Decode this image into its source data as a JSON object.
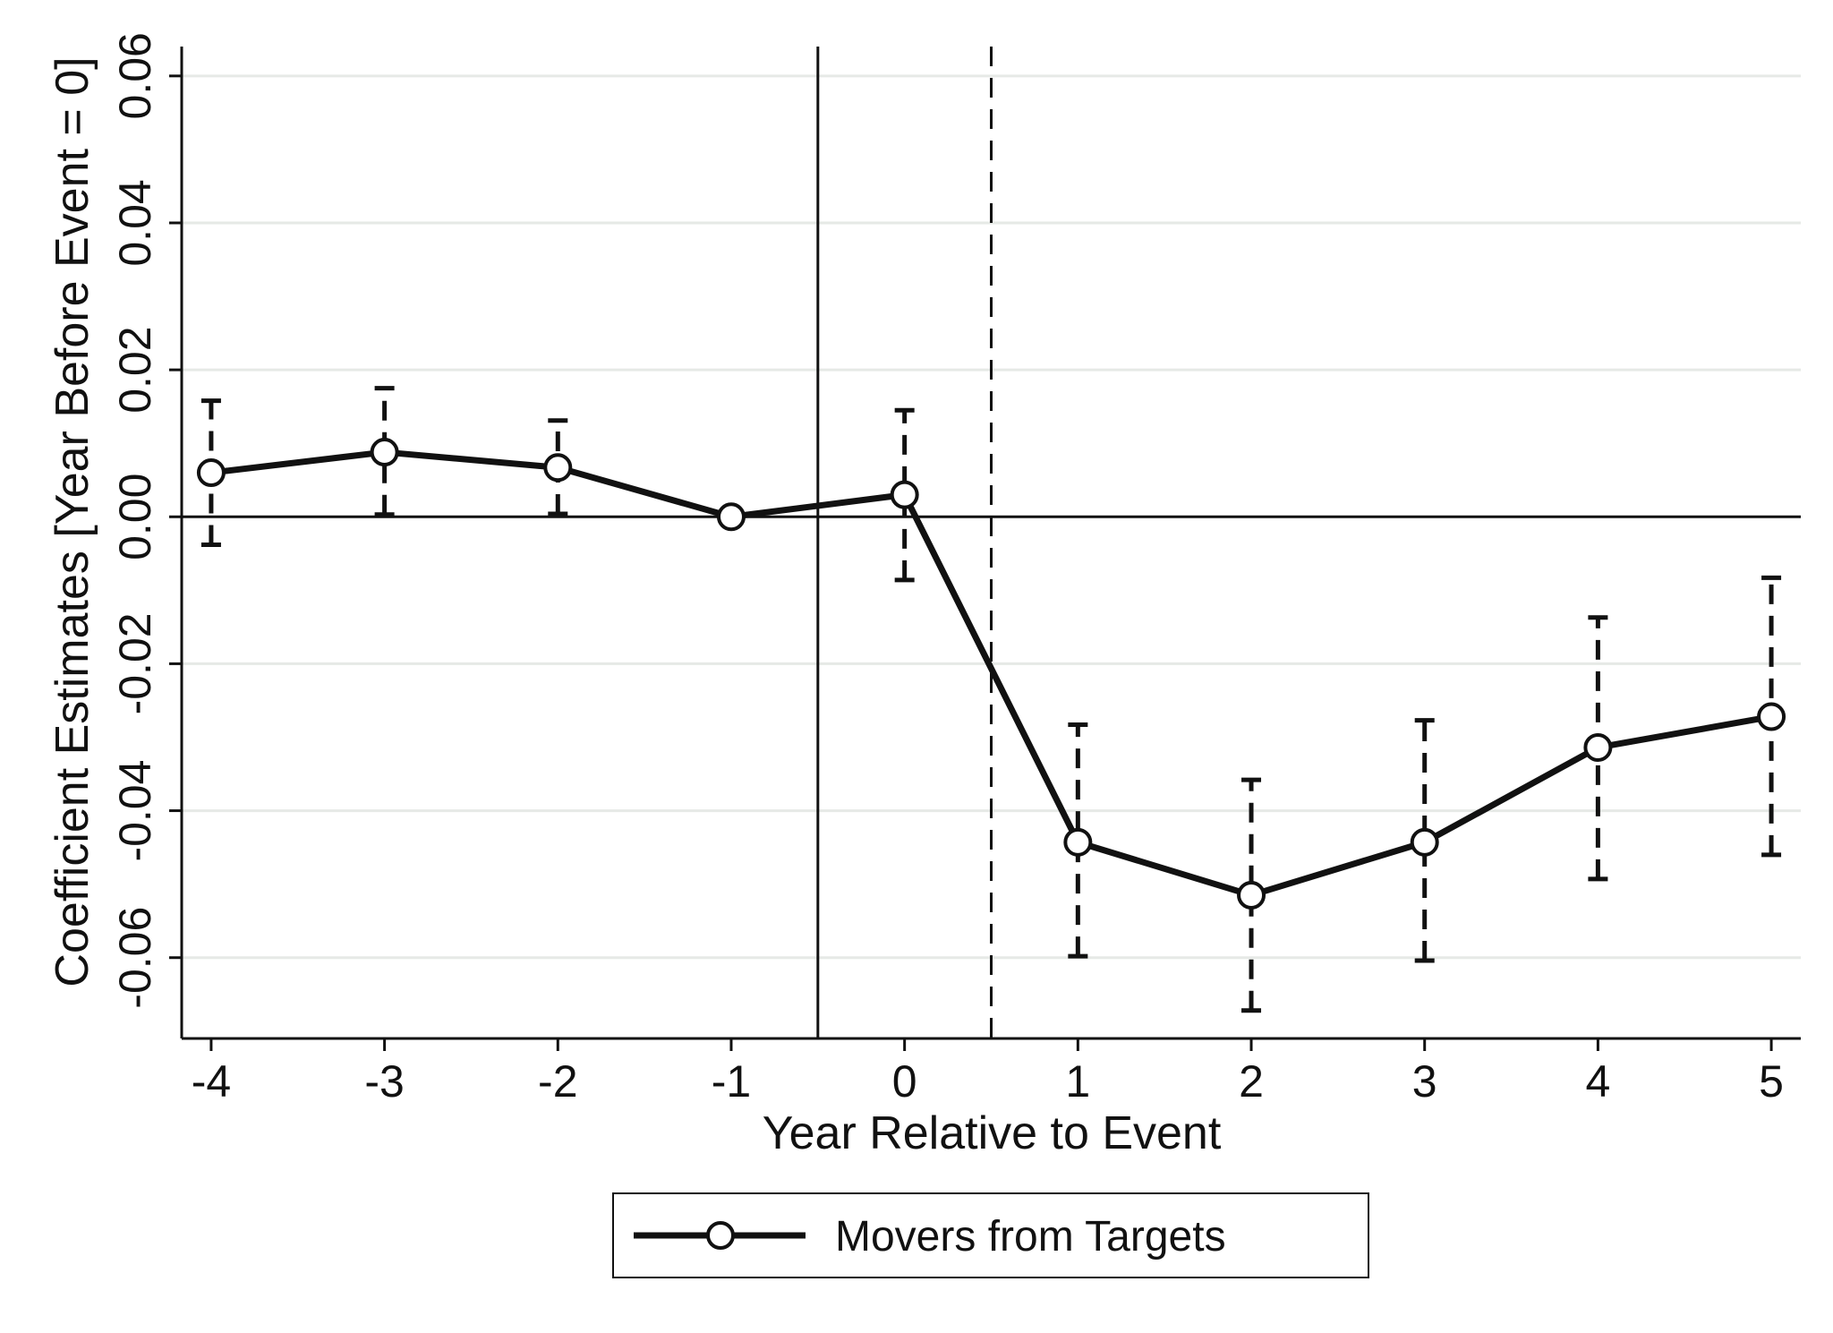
{
  "chart_data": {
    "type": "line",
    "title": "",
    "xlabel": "Year Relative to Event",
    "ylabel": "Coefficient Estimates [Year Before Event = 0]",
    "x": [
      -4,
      -3,
      -2,
      -1,
      0,
      1,
      2,
      3,
      4,
      5
    ],
    "series": [
      {
        "name": "Movers from Targets",
        "values": [
          0.006,
          0.0088,
          0.0067,
          0.0,
          0.003,
          -0.0443,
          -0.0515,
          -0.0443,
          -0.0314,
          -0.0272
        ],
        "ci_lower": [
          -0.0038,
          0.0003,
          0.0004,
          0.0,
          -0.0086,
          -0.0598,
          -0.0672,
          -0.0604,
          -0.0493,
          -0.046
        ],
        "ci_upper": [
          0.0158,
          0.0175,
          0.0131,
          0.0,
          0.0145,
          -0.0283,
          -0.0358,
          -0.0277,
          -0.0137,
          -0.0083
        ]
      }
    ],
    "xticks": [
      "-4",
      "-3",
      "-2",
      "-1",
      "0",
      "1",
      "2",
      "3",
      "4",
      "5"
    ],
    "yticks": [
      "-0.06",
      "-0.04",
      "-0.02",
      "0.00",
      "0.02",
      "0.04",
      "0.06"
    ],
    "ytick_values": [
      -0.06,
      -0.04,
      -0.02,
      0.0,
      0.02,
      0.04,
      0.06
    ],
    "xlim": [
      -4.17,
      5.17
    ],
    "ylim": [
      -0.071,
      0.064
    ],
    "reference_lines": {
      "horizontal_zero": 0,
      "vertical_solid_x": -0.5,
      "vertical_dashed_x": 0.5
    },
    "grid": "horizontal",
    "legend_position": "bottom-center",
    "colors": {
      "series": "#111111",
      "grid": "#e6e9e6",
      "axis": "#111111"
    }
  }
}
